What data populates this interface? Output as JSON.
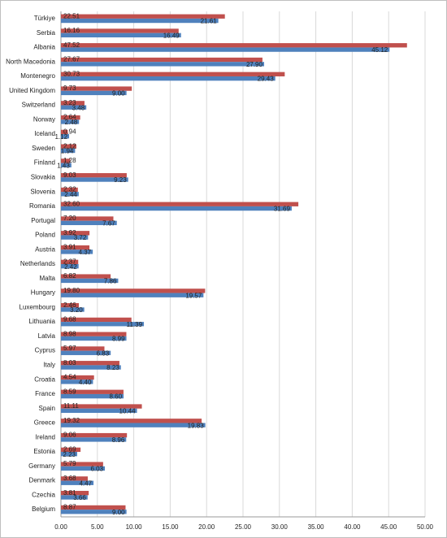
{
  "chart_data": {
    "type": "bar",
    "orientation": "horizontal",
    "categories": [
      "Türkiye",
      "Serbia",
      "Albania",
      "North Macedonia",
      "Montenegro",
      "United Kingdom",
      "Switzerland",
      "Norway",
      "Iceland",
      "Sweden",
      "Finland",
      "Slovakia",
      "Slovenia",
      "Romania",
      "Portugal",
      "Poland",
      "Austria",
      "Netherlands",
      "Malta",
      "Hungary",
      "Luxembourg",
      "Lithuania",
      "Latvia",
      "Cyprus",
      "Italy",
      "Croatia",
      "France",
      "Spain",
      "Greece",
      "Ireland",
      "Estonia",
      "Germany",
      "Denmark",
      "Czechia",
      "Belgium"
    ],
    "series": [
      {
        "color": "#c0504d",
        "values": [
          22.51,
          16.16,
          47.52,
          27.67,
          30.73,
          9.73,
          3.23,
          2.64,
          0.94,
          2.12,
          1.28,
          9.03,
          2.32,
          32.6,
          7.2,
          3.92,
          3.91,
          2.37,
          6.82,
          19.8,
          2.46,
          9.68,
          8.98,
          5.97,
          8.03,
          4.54,
          8.59,
          11.11,
          19.32,
          9.06,
          2.69,
          5.79,
          3.68,
          3.81,
          8.87
        ],
        "value_labels": [
          "22.51",
          "16.16",
          "47.52",
          "27.67",
          "30.73",
          "9.73",
          "3.23",
          "2.64",
          "0.94",
          "2.12",
          "1.28",
          "9.03",
          "2.32",
          "32.60",
          "7.20",
          "3.92",
          "3.91",
          "2.37",
          "6.82",
          "19.80",
          "2.46",
          "9.68",
          "8.98",
          "5.97",
          "8.03",
          "4.54",
          "8.59",
          "11.11",
          "19.32",
          "9.06",
          "2.69",
          "5.79",
          "3.68",
          "3.81",
          "8.87"
        ]
      },
      {
        "color": "#4f81bd",
        "values": [
          21.61,
          16.49,
          45.12,
          27.9,
          29.43,
          9.0,
          3.48,
          2.48,
          1.12,
          1.94,
          1.43,
          9.23,
          2.44,
          31.69,
          7.67,
          3.72,
          4.37,
          2.42,
          7.86,
          19.57,
          3.2,
          11.39,
          8.99,
          6.83,
          8.23,
          4.4,
          8.6,
          10.44,
          19.83,
          8.96,
          2.23,
          6.03,
          4.47,
          3.66,
          9.0
        ],
        "value_labels": [
          "21.61",
          "16.49",
          "45.12",
          "27.90",
          "29.43",
          "9.00",
          "3.48",
          "2.48",
          "1.12",
          "1.94",
          "1.43",
          "9.23",
          "2.44",
          "31.69",
          "7.67",
          "3.72",
          "4.37",
          "2.42",
          "7.86",
          "19.57",
          "3.20",
          "11.39",
          "8.99",
          "6.83",
          "8.23",
          "4.40",
          "8.60",
          "10.44",
          "19.83",
          "8.96",
          "2.23",
          "6.03",
          "4.47",
          "3.66",
          "9.00"
        ]
      }
    ],
    "xlim": [
      0,
      50
    ],
    "xticks": [
      {
        "value": 0,
        "label": "0.00"
      },
      {
        "value": 5,
        "label": "5.00"
      },
      {
        "value": 10,
        "label": "10.00"
      },
      {
        "value": 15,
        "label": "15.00"
      },
      {
        "value": 20,
        "label": "20.00"
      },
      {
        "value": 25,
        "label": "25.00"
      },
      {
        "value": 30,
        "label": "30.00"
      },
      {
        "value": 35,
        "label": "35.00"
      },
      {
        "value": 40,
        "label": "40.00"
      },
      {
        "value": 45,
        "label": "45.00"
      },
      {
        "value": 50,
        "label": "50.00"
      }
    ],
    "grid": true
  }
}
